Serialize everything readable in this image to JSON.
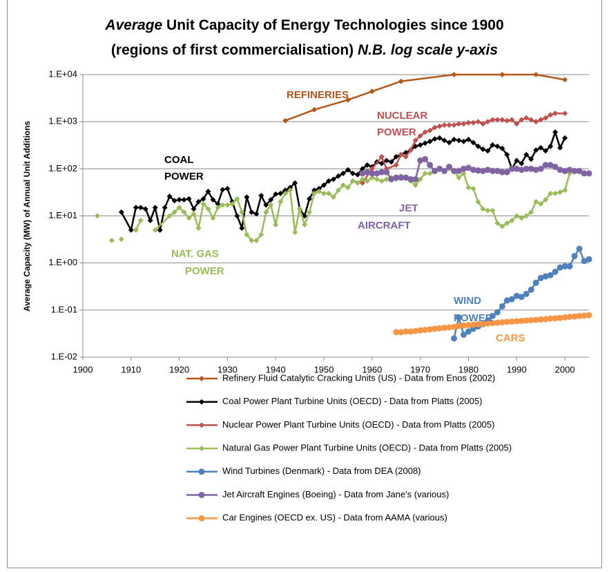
{
  "chart_data": {
    "type": "line",
    "title": {
      "line1": [
        {
          "text": "Average",
          "italic": true
        },
        {
          "text": " Unit Capacity of Energy Technologies since 1900",
          "italic": false
        }
      ],
      "line2": [
        {
          "text": "(regions of first commercialisation) ",
          "italic": false
        },
        {
          "text": "N.B. log scale y-axis",
          "italic": true
        }
      ]
    },
    "y_label": "Average Capacity  (MW) of Annual Unit Additions",
    "xlim": [
      1900,
      2005
    ],
    "xticks": [
      1900,
      1910,
      1920,
      1930,
      1940,
      1950,
      1960,
      1970,
      1980,
      1990,
      2000
    ],
    "ylim": [
      0.01,
      10000
    ],
    "log_y": true,
    "grid": true,
    "yticks": [
      {
        "value": 0.01,
        "label": "1.E-02"
      },
      {
        "value": 0.1,
        "label": "1.E-01"
      },
      {
        "value": 1,
        "label": "1.E+00"
      },
      {
        "value": 10,
        "label": "1.E+01"
      },
      {
        "value": 100,
        "label": "1.E+02"
      },
      {
        "value": 1000,
        "label": "1.E+03"
      },
      {
        "value": 10000,
        "label": "1.E+04"
      }
    ],
    "annotations": [
      {
        "lines": [
          "REFINERIES"
        ],
        "color": "#b5561c"
      },
      {
        "lines": [
          "NUCLEAR",
          "POWER"
        ],
        "color": "#c0504d"
      },
      {
        "lines": [
          "COAL",
          "POWER"
        ],
        "color": "#000000"
      },
      {
        "lines": [
          "JET",
          "AIRCRAFT"
        ],
        "color": "#8064a2"
      },
      {
        "lines": [
          "NAT. GAS",
          "POWER"
        ],
        "color": "#9bbb59"
      },
      {
        "lines": [
          "WIND",
          "POWER"
        ],
        "color": "#4f81bd"
      },
      {
        "lines": [
          "CARS"
        ],
        "color": "#f79646"
      }
    ],
    "series": [
      {
        "name": "Refinery Fluid Catalytic Cracking Units (US) - Data from Enos (2002)",
        "color": "#b5561c",
        "marker": "diamond",
        "x": [
          1942,
          1948,
          1955,
          1960,
          1966,
          1977,
          1987,
          1994,
          2000
        ],
        "values": [
          1050,
          1800,
          2900,
          4400,
          7200,
          10000,
          10000,
          10000,
          7800
        ]
      },
      {
        "name": "Coal Power Plant Turbine Units (OECD) - Data from Platts (2005)",
        "color": "#000000",
        "marker": "diamond",
        "x": [
          1908,
          1910,
          1911,
          1912,
          1913,
          1914,
          1915,
          1916,
          1917,
          1918,
          1919,
          1920,
          1921,
          1922,
          1923,
          1924,
          1925,
          1926,
          1927,
          1928,
          1929,
          1930,
          1931,
          1932,
          1933,
          1934,
          1935,
          1936,
          1937,
          1938,
          1939,
          1940,
          1941,
          1942,
          1943,
          1944,
          1945,
          1946,
          1947,
          1948,
          1949,
          1950,
          1951,
          1952,
          1953,
          1954,
          1955,
          1956,
          1957,
          1958,
          1959,
          1960,
          1961,
          1962,
          1963,
          1964,
          1965,
          1966,
          1967,
          1968,
          1969,
          1970,
          1971,
          1972,
          1973,
          1974,
          1975,
          1976,
          1977,
          1978,
          1979,
          1980,
          1981,
          1982,
          1983,
          1984,
          1985,
          1986,
          1987,
          1988,
          1989,
          1990,
          1991,
          1992,
          1993,
          1994,
          1995,
          1996,
          1997,
          1998,
          1999,
          2000
        ],
        "values": [
          12,
          5,
          15,
          15,
          14,
          8,
          15,
          5,
          15,
          26,
          21,
          22,
          22,
          23,
          14,
          20,
          23,
          33,
          22,
          18,
          36,
          38,
          20,
          10,
          5.5,
          25,
          12,
          11,
          27,
          17,
          22,
          29,
          30,
          35,
          40,
          50,
          14,
          10,
          23,
          35,
          38,
          45,
          55,
          60,
          70,
          80,
          95,
          80,
          75,
          100,
          120,
          110,
          140,
          130,
          150,
          140,
          180,
          200,
          220,
          250,
          300,
          320,
          350,
          380,
          430,
          450,
          400,
          360,
          420,
          400,
          380,
          420,
          360,
          300,
          260,
          240,
          320,
          300,
          270,
          200,
          100,
          150,
          130,
          200,
          160,
          250,
          280,
          240,
          300,
          600,
          280,
          450
        ]
      },
      {
        "name": "Nuclear Power Plant Turbine Units (OECD) - Data from Platts (2005)",
        "color": "#c0504d",
        "marker": "diamond",
        "x": [
          1956,
          1958,
          1960,
          1962,
          1963,
          1965,
          1966,
          1967,
          1968,
          1969,
          1970,
          1971,
          1972,
          1973,
          1974,
          1975,
          1976,
          1977,
          1978,
          1979,
          1980,
          1981,
          1982,
          1983,
          1984,
          1985,
          1986,
          1987,
          1988,
          1989,
          1990,
          1991,
          1992,
          1993,
          1994,
          1995,
          1996,
          1997,
          1998,
          2000
        ],
        "values": [
          55,
          50,
          100,
          180,
          100,
          120,
          200,
          180,
          250,
          400,
          500,
          600,
          650,
          750,
          800,
          850,
          850,
          850,
          900,
          900,
          950,
          950,
          1000,
          900,
          1000,
          1100,
          1100,
          1100,
          1050,
          1100,
          900,
          1100,
          1200,
          1100,
          1000,
          1100,
          1200,
          1400,
          1500,
          1500
        ]
      },
      {
        "name": "Natural Gas Power Plant Turbine Units (OECD) - Data from Platts (2005)",
        "color": "#9bbb59",
        "marker": "diamond",
        "x": [
          1903,
          1904,
          1906,
          1907,
          1908,
          1909,
          1911,
          1912,
          1914,
          1915,
          1918,
          1919,
          1920,
          1921,
          1922,
          1923,
          1924,
          1925,
          1926,
          1927,
          1928,
          1929,
          1930,
          1931,
          1932,
          1933,
          1934,
          1935,
          1936,
          1937,
          1938,
          1939,
          1940,
          1941,
          1942,
          1943,
          1944,
          1945,
          1946,
          1947,
          1948,
          1949,
          1950,
          1951,
          1952,
          1953,
          1954,
          1955,
          1956,
          1957,
          1958,
          1959,
          1960,
          1961,
          1962,
          1963,
          1964,
          1965,
          1966,
          1967,
          1968,
          1969,
          1970,
          1971,
          1972,
          1973,
          1974,
          1975,
          1976,
          1977,
          1978,
          1979,
          1980,
          1981,
          1982,
          1983,
          1984,
          1985,
          1986,
          1987,
          1988,
          1989,
          1990,
          1991,
          1992,
          1993,
          1994,
          1995,
          1996,
          1997,
          1998,
          1999,
          2000,
          2001
        ],
        "values": [
          10,
          null,
          3,
          null,
          3.2,
          null,
          5,
          8,
          null,
          5,
          10,
          12,
          15,
          12,
          9,
          11,
          5.5,
          18,
          14,
          9,
          15,
          17,
          17,
          18,
          23,
          12,
          4,
          3,
          3,
          4,
          12,
          17,
          6.5,
          20,
          30,
          35,
          4.5,
          14,
          6.5,
          12,
          30,
          33,
          30,
          30,
          25,
          35,
          45,
          40,
          55,
          50,
          60,
          55,
          65,
          60,
          55,
          60,
          65,
          60,
          70,
          65,
          55,
          45,
          60,
          80,
          80,
          90,
          100,
          90,
          100,
          90,
          65,
          80,
          40,
          38,
          20,
          14,
          13,
          13,
          7,
          6,
          7,
          8,
          10,
          9,
          10,
          12,
          20,
          18,
          22,
          30,
          30,
          32,
          35,
          80
        ]
      },
      {
        "name": "Wind Turbines (Denmark) - Data from DEA (2008)",
        "color": "#4f81bd",
        "marker": "circle",
        "x": [
          1977,
          1978,
          1979,
          1980,
          1981,
          1982,
          1983,
          1984,
          1985,
          1986,
          1987,
          1988,
          1989,
          1990,
          1991,
          1992,
          1993,
          1994,
          1995,
          1996,
          1997,
          1998,
          1999,
          2000,
          2001,
          2002,
          2003,
          2004,
          2005
        ],
        "values": [
          0.025,
          0.07,
          0.03,
          0.035,
          0.04,
          0.045,
          0.05,
          0.06,
          0.075,
          0.09,
          0.12,
          0.16,
          0.17,
          0.2,
          0.19,
          0.22,
          0.27,
          0.38,
          0.48,
          0.52,
          0.55,
          0.65,
          0.8,
          0.85,
          0.85,
          1.4,
          2,
          1.1,
          1.2
        ]
      },
      {
        "name": "Jet Aircraft Engines (Boeing) - Data from Jane's (various)",
        "color": "#8064a2",
        "marker": "circle",
        "x": [
          1958,
          1959,
          1960,
          1961,
          1962,
          1963,
          1964,
          1965,
          1966,
          1967,
          1968,
          1969,
          1970,
          1971,
          1972,
          1973,
          1974,
          1975,
          1976,
          1977,
          1978,
          1979,
          1980,
          1981,
          1982,
          1983,
          1984,
          1985,
          1986,
          1987,
          1988,
          1989,
          1990,
          1991,
          1992,
          1993,
          1994,
          1995,
          1996,
          1997,
          1998,
          1999,
          2000,
          2001,
          2002,
          2003,
          2004,
          2005
        ],
        "values": [
          80,
          85,
          80,
          80,
          85,
          85,
          60,
          65,
          65,
          65,
          60,
          60,
          150,
          160,
          120,
          90,
          100,
          90,
          110,
          90,
          90,
          100,
          105,
          95,
          92,
          90,
          95,
          90,
          90,
          85,
          85,
          100,
          100,
          95,
          100,
          100,
          95,
          100,
          120,
          120,
          110,
          95,
          90,
          95,
          90,
          90,
          80,
          80
        ]
      },
      {
        "name": "Car Engines (OECD ex. US) - Data from AAMA (various)",
        "color": "#f79646",
        "marker": "circle",
        "x": [
          1965,
          1966,
          1967,
          1968,
          1969,
          1970,
          1971,
          1972,
          1973,
          1974,
          1975,
          1976,
          1977,
          1978,
          1979,
          1980,
          1981,
          1982,
          1983,
          1984,
          1985,
          1986,
          1987,
          1988,
          1989,
          1990,
          1991,
          1992,
          1993,
          1994,
          1995,
          1996,
          1997,
          1998,
          1999,
          2000,
          2001,
          2002,
          2003,
          2004,
          2005
        ],
        "values": [
          0.034,
          0.034,
          0.035,
          0.035,
          0.036,
          0.037,
          0.038,
          0.039,
          0.04,
          0.041,
          0.042,
          0.043,
          0.044,
          0.046,
          0.047,
          0.048,
          0.049,
          0.05,
          0.051,
          0.052,
          0.053,
          0.054,
          0.055,
          0.056,
          0.057,
          0.058,
          0.059,
          0.06,
          0.061,
          0.062,
          0.063,
          0.064,
          0.066,
          0.067,
          0.068,
          0.07,
          0.072,
          0.073,
          0.075,
          0.076,
          0.078
        ]
      }
    ]
  }
}
